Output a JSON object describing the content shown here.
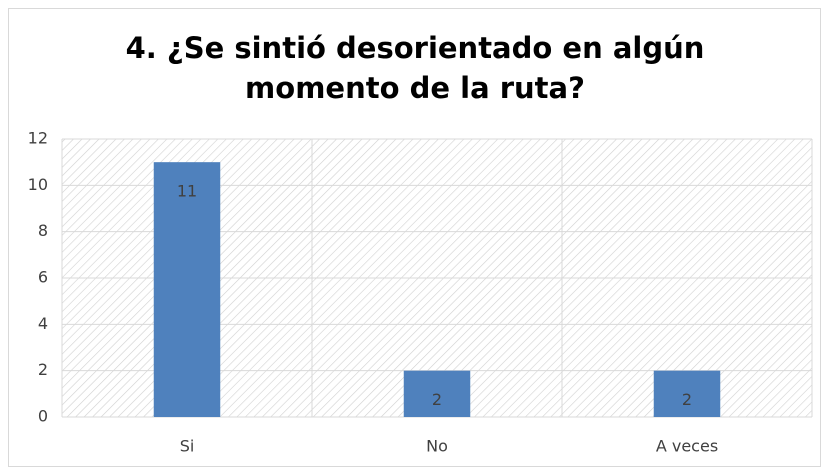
{
  "chart_data": {
    "type": "bar",
    "title": "4. ¿Se sintió desorientado en algún momento de la ruta?",
    "categories": [
      "Si",
      "No",
      "A veces"
    ],
    "values": [
      11,
      2,
      2
    ],
    "color": "#4f81bd",
    "ylim": [
      0,
      12
    ],
    "yticks": [
      0,
      2,
      4,
      6,
      8,
      10,
      12
    ],
    "grid": true
  }
}
